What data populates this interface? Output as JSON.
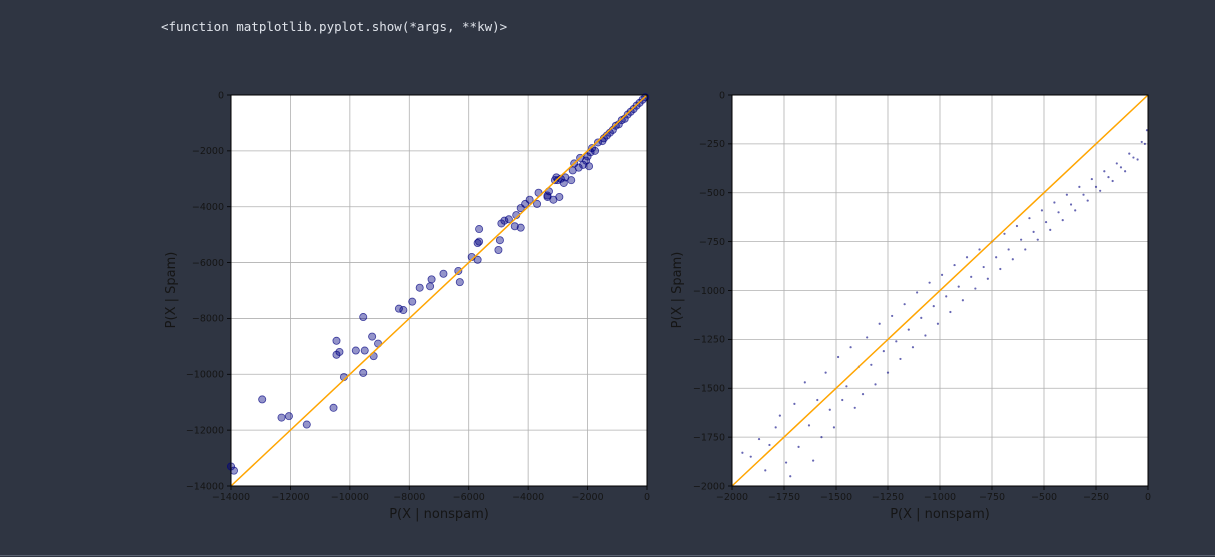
{
  "cell_output": {
    "text": "<function matplotlib.pyplot.show(*args, **kw)>"
  },
  "colors": {
    "background": "#2f3542",
    "point": "#000080",
    "diagonal": "#ffa500",
    "grid": "#b0b0b0"
  },
  "chart_data": [
    {
      "type": "scatter",
      "xlabel": "P(X | nonspam)",
      "ylabel": "P(X | Spam)",
      "xlim": [
        -14000,
        0
      ],
      "ylim": [
        -14000,
        0
      ],
      "xticks": [
        -14000,
        -12000,
        -10000,
        -8000,
        -6000,
        -4000,
        -2000,
        0
      ],
      "yticks": [
        -14000,
        -12000,
        -10000,
        -8000,
        -6000,
        -4000,
        -2000,
        0
      ],
      "xtick_labels": [
        "−14000",
        "−12000",
        "−10000",
        "−8000",
        "−6000",
        "−4000",
        "−2000",
        "0"
      ],
      "ytick_labels": [
        "−14000",
        "−12000",
        "−10000",
        "−8000",
        "−6000",
        "−4000",
        "−2000",
        "0"
      ],
      "grid": true,
      "reference_line": [
        [
          -14000,
          -14000
        ],
        [
          0,
          0
        ]
      ],
      "marker": "large-circle",
      "points": [
        [
          -14000,
          -13300
        ],
        [
          -13900,
          -13450
        ],
        [
          -12950,
          -10900
        ],
        [
          -12300,
          -11550
        ],
        [
          -12050,
          -11500
        ],
        [
          -11450,
          -11800
        ],
        [
          -10550,
          -11200
        ],
        [
          -10450,
          -8800
        ],
        [
          -10450,
          -9300
        ],
        [
          -10350,
          -9200
        ],
        [
          -10200,
          -10100
        ],
        [
          -9800,
          -9150
        ],
        [
          -9550,
          -9950
        ],
        [
          -9550,
          -7950
        ],
        [
          -9500,
          -9150
        ],
        [
          -9250,
          -8650
        ],
        [
          -9200,
          -9350
        ],
        [
          -9050,
          -8900
        ],
        [
          -8350,
          -7650
        ],
        [
          -8200,
          -7700
        ],
        [
          -7900,
          -7400
        ],
        [
          -7650,
          -6900
        ],
        [
          -7300,
          -6850
        ],
        [
          -7250,
          -6600
        ],
        [
          -6850,
          -6400
        ],
        [
          -6350,
          -6300
        ],
        [
          -6300,
          -6700
        ],
        [
          -5900,
          -5800
        ],
        [
          -5700,
          -5900
        ],
        [
          -5700,
          -5300
        ],
        [
          -5650,
          -5250
        ],
        [
          -5650,
          -4800
        ],
        [
          -5000,
          -5550
        ],
        [
          -4950,
          -5200
        ],
        [
          -4900,
          -4600
        ],
        [
          -4800,
          -4500
        ],
        [
          -4650,
          -4450
        ],
        [
          -4450,
          -4700
        ],
        [
          -4400,
          -4300
        ],
        [
          -4250,
          -4750
        ],
        [
          -4250,
          -4050
        ],
        [
          -4100,
          -3900
        ],
        [
          -3950,
          -3750
        ],
        [
          -3700,
          -3900
        ],
        [
          -3650,
          -3500
        ],
        [
          -3350,
          -3650
        ],
        [
          -3350,
          -3600
        ],
        [
          -3300,
          -3450
        ],
        [
          -3150,
          -3750
        ],
        [
          -3100,
          -3050
        ],
        [
          -3050,
          -2950
        ],
        [
          -3000,
          -3050
        ],
        [
          -2950,
          -3650
        ],
        [
          -2900,
          -3000
        ],
        [
          -2800,
          -3150
        ],
        [
          -2750,
          -2950
        ],
        [
          -2550,
          -3050
        ],
        [
          -2500,
          -2700
        ],
        [
          -2450,
          -2450
        ],
        [
          -2300,
          -2600
        ],
        [
          -2250,
          -2250
        ],
        [
          -2150,
          -2500
        ],
        [
          -2050,
          -2350
        ],
        [
          -2000,
          -2200
        ],
        [
          -1950,
          -2550
        ],
        [
          -1900,
          -2050
        ],
        [
          -1850,
          -1900
        ],
        [
          -1750,
          -2000
        ],
        [
          -1650,
          -1700
        ],
        [
          -1500,
          -1650
        ],
        [
          -1450,
          -1550
        ],
        [
          -1350,
          -1450
        ],
        [
          -1250,
          -1350
        ],
        [
          -1150,
          -1250
        ],
        [
          -1050,
          -1100
        ],
        [
          -950,
          -1050
        ],
        [
          -850,
          -900
        ],
        [
          -750,
          -850
        ],
        [
          -650,
          -700
        ],
        [
          -550,
          -600
        ],
        [
          -450,
          -500
        ],
        [
          -350,
          -380
        ],
        [
          -250,
          -280
        ],
        [
          -150,
          -170
        ],
        [
          -60,
          -80
        ]
      ]
    },
    {
      "type": "scatter",
      "xlabel": "P(X | nonspam)",
      "ylabel": "P(X | Spam)",
      "xlim": [
        -2000,
        0
      ],
      "ylim": [
        -2000,
        0
      ],
      "xticks": [
        -2000,
        -1750,
        -1500,
        -1250,
        -1000,
        -750,
        -500,
        -250,
        0
      ],
      "yticks": [
        -2000,
        -1750,
        -1500,
        -1250,
        -1000,
        -750,
        -500,
        -250,
        0
      ],
      "xtick_labels": [
        "−2000",
        "−1750",
        "−1500",
        "−1250",
        "−1000",
        "−750",
        "−500",
        "−250",
        "0"
      ],
      "ytick_labels": [
        "−2000",
        "−1750",
        "−1500",
        "−1250",
        "−1000",
        "−750",
        "−500",
        "−250",
        "0"
      ],
      "grid": true,
      "reference_line": [
        [
          -2000,
          -2000
        ],
        [
          0,
          0
        ]
      ],
      "marker": "small-dot",
      "points": [
        [
          -1950,
          -1830
        ],
        [
          -1910,
          -1850
        ],
        [
          -1870,
          -1760
        ],
        [
          -1840,
          -1920
        ],
        [
          -1820,
          -1790
        ],
        [
          -1790,
          -1700
        ],
        [
          -1770,
          -1640
        ],
        [
          -1740,
          -1880
        ],
        [
          -1720,
          -1950
        ],
        [
          -1700,
          -1580
        ],
        [
          -1680,
          -1800
        ],
        [
          -1650,
          -1470
        ],
        [
          -1630,
          -1690
        ],
        [
          -1610,
          -1870
        ],
        [
          -1590,
          -1560
        ],
        [
          -1570,
          -1750
        ],
        [
          -1550,
          -1420
        ],
        [
          -1530,
          -1610
        ],
        [
          -1510,
          -1700
        ],
        [
          -1490,
          -1340
        ],
        [
          -1470,
          -1560
        ],
        [
          -1450,
          -1490
        ],
        [
          -1430,
          -1290
        ],
        [
          -1410,
          -1600
        ],
        [
          -1390,
          -1390
        ],
        [
          -1370,
          -1530
        ],
        [
          -1350,
          -1240
        ],
        [
          -1330,
          -1380
        ],
        [
          -1310,
          -1480
        ],
        [
          -1290,
          -1170
        ],
        [
          -1270,
          -1310
        ],
        [
          -1250,
          -1420
        ],
        [
          -1230,
          -1130
        ],
        [
          -1210,
          -1260
        ],
        [
          -1190,
          -1350
        ],
        [
          -1170,
          -1070
        ],
        [
          -1150,
          -1200
        ],
        [
          -1130,
          -1290
        ],
        [
          -1110,
          -1010
        ],
        [
          -1090,
          -1140
        ],
        [
          -1070,
          -1230
        ],
        [
          -1050,
          -960
        ],
        [
          -1030,
          -1080
        ],
        [
          -1010,
          -1170
        ],
        [
          -990,
          -920
        ],
        [
          -970,
          -1030
        ],
        [
          -950,
          -1110
        ],
        [
          -930,
          -870
        ],
        [
          -910,
          -980
        ],
        [
          -890,
          -1050
        ],
        [
          -870,
          -830
        ],
        [
          -850,
          -930
        ],
        [
          -830,
          -990
        ],
        [
          -810,
          -790
        ],
        [
          -790,
          -880
        ],
        [
          -770,
          -940
        ],
        [
          -750,
          -750
        ],
        [
          -730,
          -830
        ],
        [
          -710,
          -890
        ],
        [
          -690,
          -710
        ],
        [
          -670,
          -790
        ],
        [
          -650,
          -840
        ],
        [
          -630,
          -670
        ],
        [
          -610,
          -740
        ],
        [
          -590,
          -790
        ],
        [
          -570,
          -630
        ],
        [
          -550,
          -700
        ],
        [
          -530,
          -740
        ],
        [
          -510,
          -590
        ],
        [
          -490,
          -650
        ],
        [
          -470,
          -690
        ],
        [
          -450,
          -550
        ],
        [
          -430,
          -600
        ],
        [
          -410,
          -640
        ],
        [
          -390,
          -510
        ],
        [
          -370,
          -560
        ],
        [
          -350,
          -590
        ],
        [
          -330,
          -470
        ],
        [
          -310,
          -510
        ],
        [
          -290,
          -540
        ],
        [
          -270,
          -430
        ],
        [
          -250,
          -470
        ],
        [
          -230,
          -490
        ],
        [
          -210,
          -390
        ],
        [
          -190,
          -420
        ],
        [
          -170,
          -440
        ],
        [
          -150,
          -350
        ],
        [
          -130,
          -370
        ],
        [
          -110,
          -390
        ],
        [
          -90,
          -300
        ],
        [
          -70,
          -320
        ],
        [
          -50,
          -330
        ],
        [
          -30,
          -240
        ],
        [
          -15,
          -250
        ],
        [
          -5,
          -180
        ]
      ]
    }
  ]
}
